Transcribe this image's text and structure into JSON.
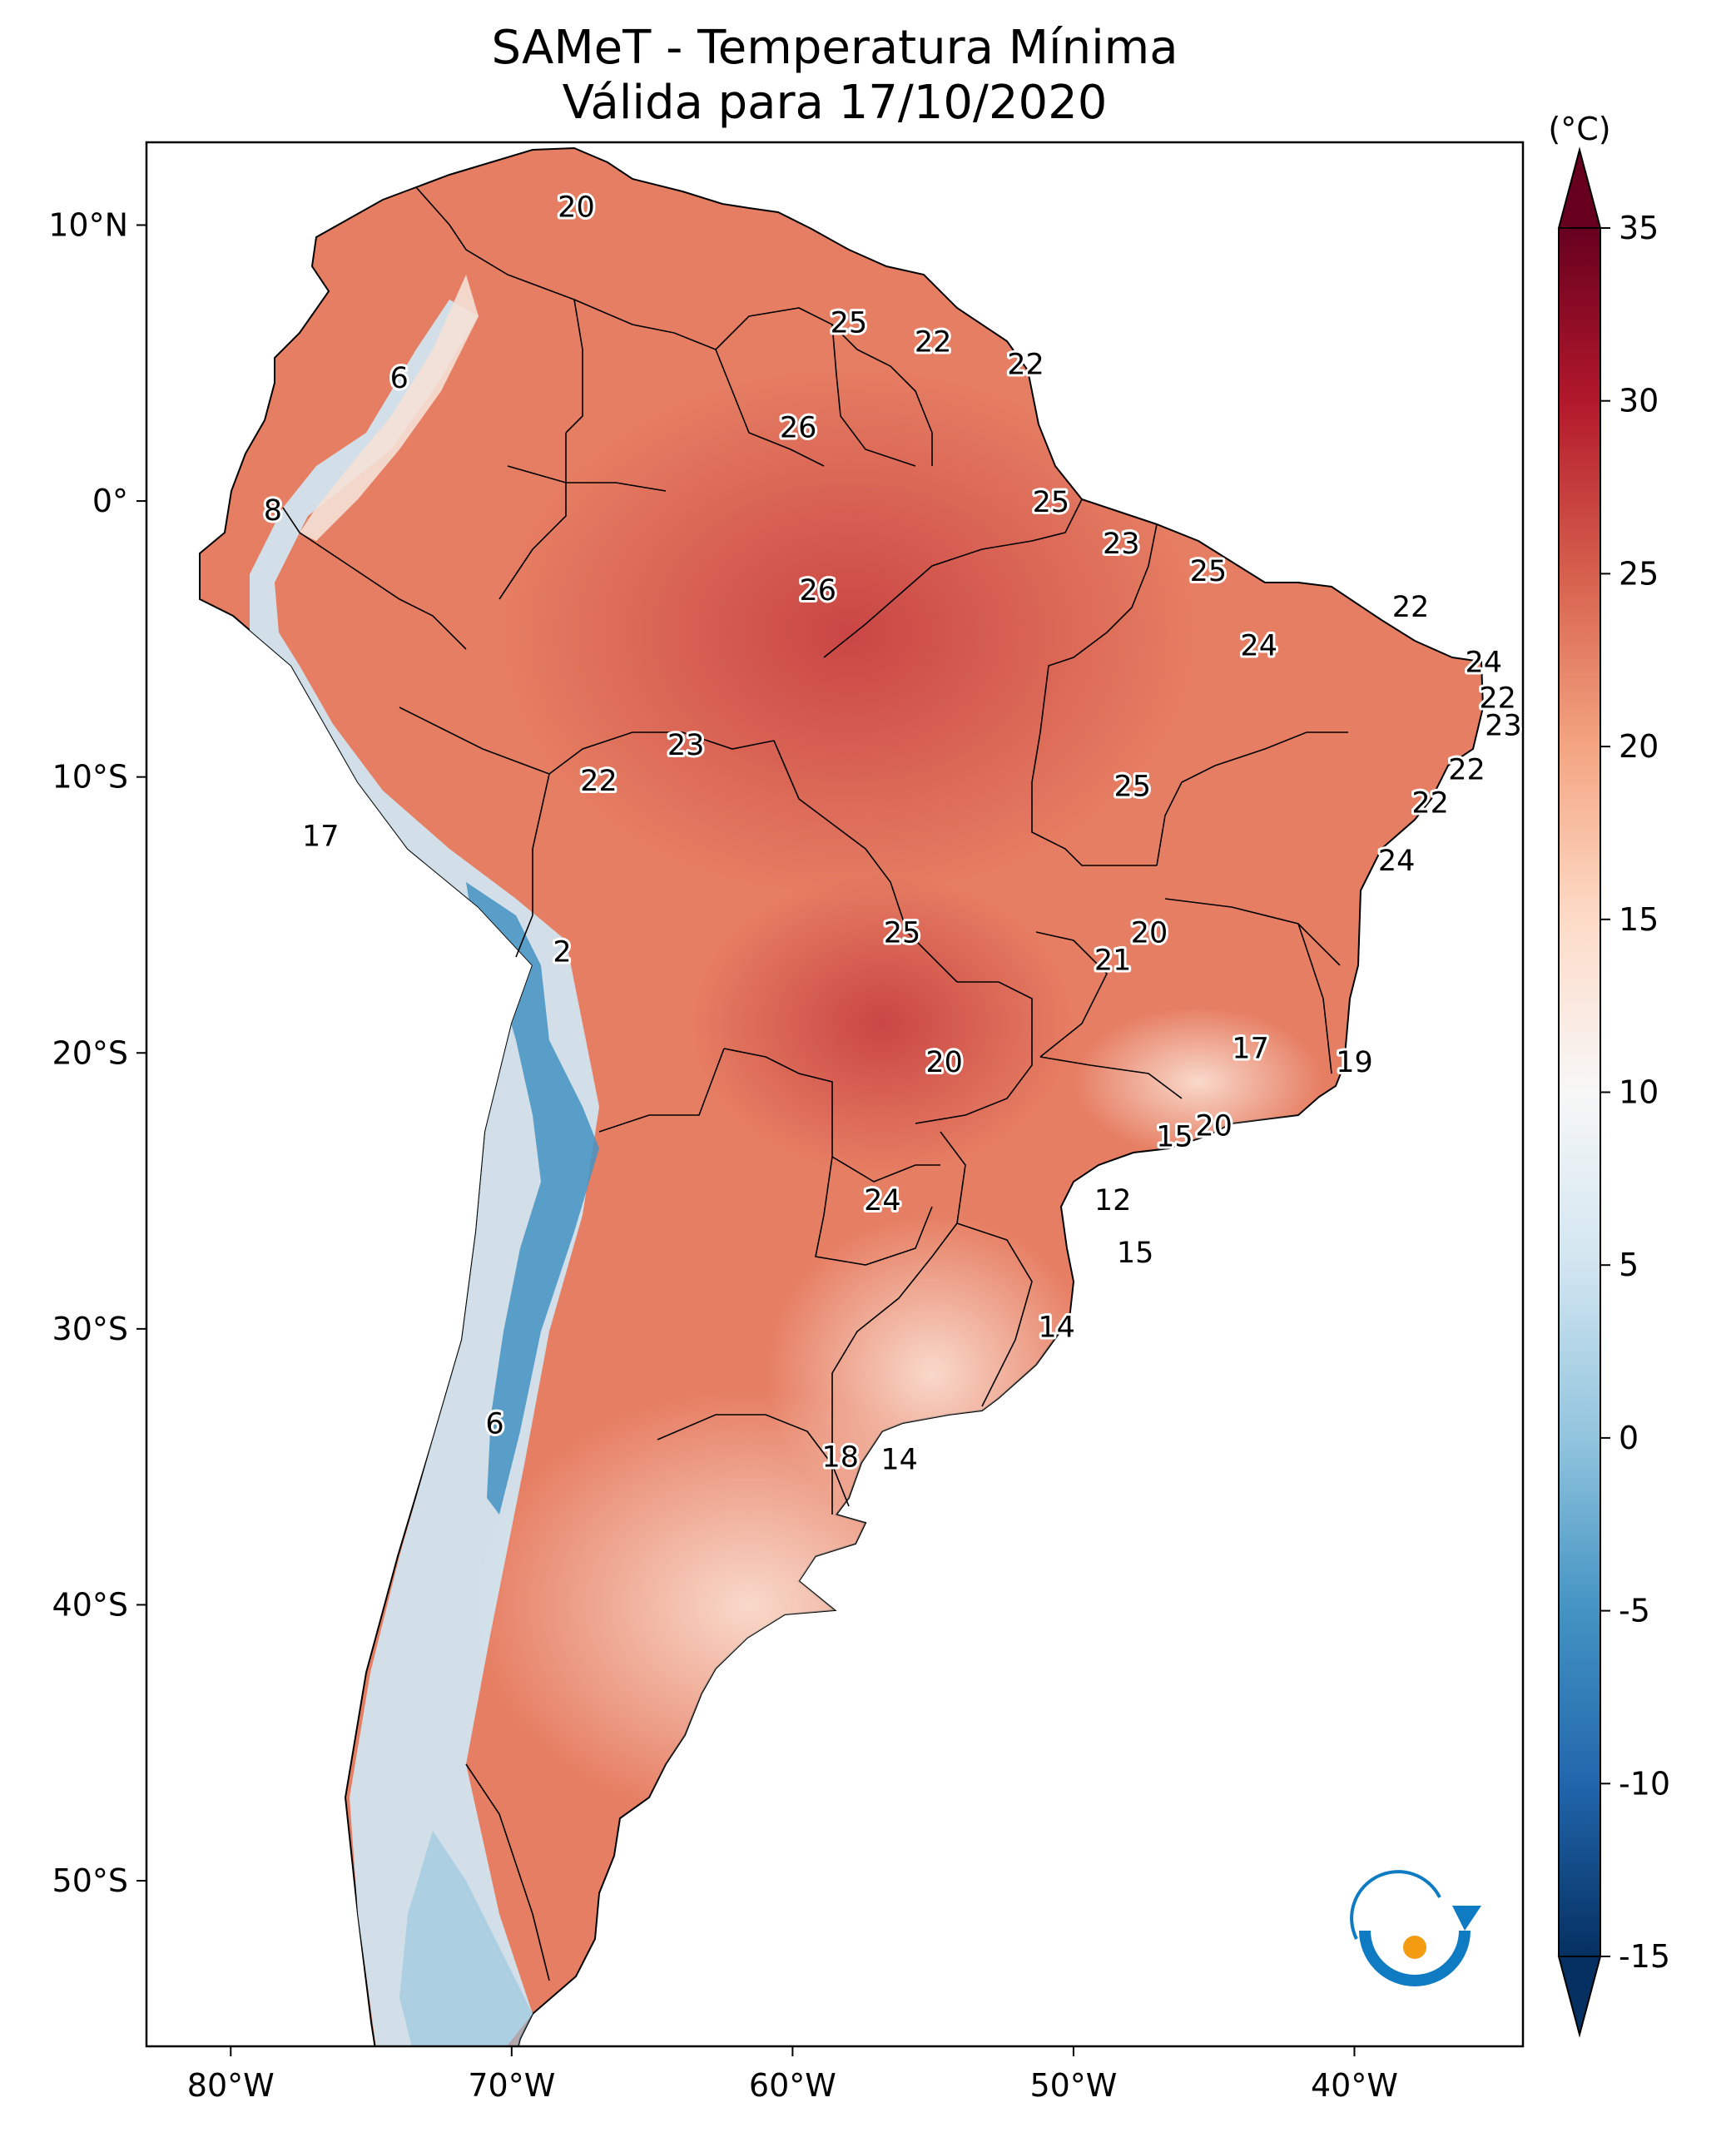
{
  "header": {
    "title_line1": "SAMeT - Temperatura Mínima",
    "title_line2": "Válida para 17/10/2020"
  },
  "chart_data": {
    "type": "heatmap",
    "title": "SAMeT - Temperatura Mínima Válida para 17/10/2020",
    "xlabel": "",
    "ylabel": "",
    "xlim": [
      -83,
      -34
    ],
    "ylim": [
      -56,
      13
    ],
    "x_ticks": [
      {
        "value": -80,
        "label": "80°W"
      },
      {
        "value": -70,
        "label": "70°W"
      },
      {
        "value": -60,
        "label": "60°W"
      },
      {
        "value": -50,
        "label": "50°W"
      },
      {
        "value": -40,
        "label": "40°W"
      }
    ],
    "y_ticks": [
      {
        "value": 10,
        "label": "10°N"
      },
      {
        "value": 0,
        "label": "0°"
      },
      {
        "value": -10,
        "label": "10°S"
      },
      {
        "value": -20,
        "label": "20°S"
      },
      {
        "value": -30,
        "label": "30°S"
      },
      {
        "value": -40,
        "label": "40°S"
      },
      {
        "value": -50,
        "label": "50°S"
      }
    ],
    "colorbar": {
      "unit": "(°C)",
      "min": -15,
      "max": 35,
      "extend": "both",
      "ticks": [
        35,
        30,
        25,
        20,
        15,
        10,
        5,
        0,
        -5,
        -10,
        -15
      ],
      "tick_labels": [
        "35",
        "30",
        "25",
        "20",
        "15",
        "10",
        "5",
        "0",
        "-5",
        "-10",
        "-15"
      ],
      "colors": [
        "#053061",
        "#2166ac",
        "#4393c3",
        "#92c5de",
        "#d1e5f0",
        "#f7f7f7",
        "#fddbc7",
        "#f4a582",
        "#d6604d",
        "#b2182b",
        "#67001f"
      ]
    },
    "annotations": [
      {
        "lon": -67.7,
        "lat": 10.7,
        "value": 20
      },
      {
        "lon": -58.0,
        "lat": 6.5,
        "value": 25
      },
      {
        "lon": -55.0,
        "lat": 5.8,
        "value": 22
      },
      {
        "lon": -51.7,
        "lat": 5.0,
        "value": 22
      },
      {
        "lon": -74.0,
        "lat": 4.5,
        "value": 6
      },
      {
        "lon": -59.8,
        "lat": 2.7,
        "value": 26
      },
      {
        "lon": -78.5,
        "lat": -0.3,
        "value": 8
      },
      {
        "lon": -50.8,
        "lat": 0.0,
        "value": 25
      },
      {
        "lon": -48.3,
        "lat": -1.5,
        "value": 23
      },
      {
        "lon": -59.1,
        "lat": -3.2,
        "value": 26
      },
      {
        "lon": -45.2,
        "lat": -2.5,
        "value": 25
      },
      {
        "lon": -38.0,
        "lat": -3.8,
        "value": 22
      },
      {
        "lon": -43.4,
        "lat": -5.2,
        "value": 24
      },
      {
        "lon": -35.4,
        "lat": -5.8,
        "value": 24
      },
      {
        "lon": -34.9,
        "lat": -7.1,
        "value": 22
      },
      {
        "lon": -34.7,
        "lat": -8.1,
        "value": 23
      },
      {
        "lon": -63.8,
        "lat": -8.8,
        "value": 23
      },
      {
        "lon": -47.9,
        "lat": -10.3,
        "value": 25
      },
      {
        "lon": -36.0,
        "lat": -9.7,
        "value": 22
      },
      {
        "lon": -66.9,
        "lat": -10.1,
        "value": 22
      },
      {
        "lon": -37.3,
        "lat": -10.9,
        "value": 22
      },
      {
        "lon": -76.8,
        "lat": -12.1,
        "value": 17
      },
      {
        "lon": -38.5,
        "lat": -13.0,
        "value": 24
      },
      {
        "lon": -56.1,
        "lat": -15.6,
        "value": 25
      },
      {
        "lon": -47.3,
        "lat": -15.6,
        "value": 20
      },
      {
        "lon": -48.6,
        "lat": -16.6,
        "value": 21
      },
      {
        "lon": -68.2,
        "lat": -16.3,
        "value": 2
      },
      {
        "lon": -43.7,
        "lat": -19.8,
        "value": 17
      },
      {
        "lon": -54.6,
        "lat": -20.3,
        "value": 20
      },
      {
        "lon": -40.0,
        "lat": -20.3,
        "value": 19
      },
      {
        "lon": -45.0,
        "lat": -22.6,
        "value": 20
      },
      {
        "lon": -46.4,
        "lat": -23.0,
        "value": 15
      },
      {
        "lon": -56.8,
        "lat": -25.3,
        "value": 24
      },
      {
        "lon": -48.6,
        "lat": -25.3,
        "value": 12
      },
      {
        "lon": -47.8,
        "lat": -27.2,
        "value": 15
      },
      {
        "lon": -50.6,
        "lat": -29.9,
        "value": 14
      },
      {
        "lon": -70.6,
        "lat": -33.4,
        "value": 6
      },
      {
        "lon": -58.3,
        "lat": -34.6,
        "value": 18
      },
      {
        "lon": -56.2,
        "lat": -34.7,
        "value": 14
      }
    ]
  }
}
